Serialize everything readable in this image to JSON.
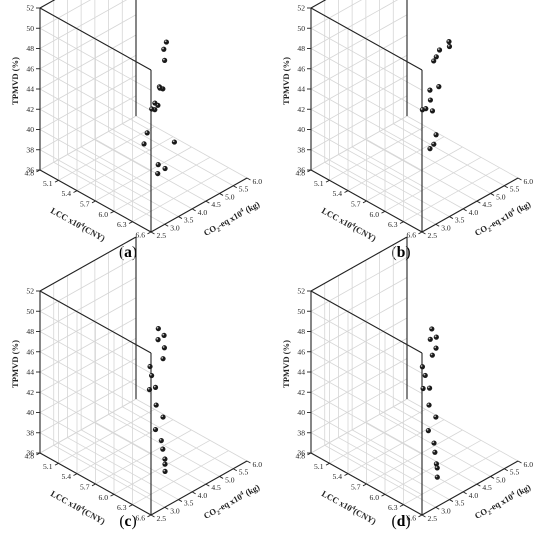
{
  "colors": {
    "point": "#1a1a1a",
    "grid": "#d6d6d6",
    "axis": "#222222"
  },
  "axis_labels": {
    "z": "TPMVD (%)",
    "x": "LCC x10",
    "x_sup": "4",
    "x_unit": "(CNY)",
    "y_pre": "CO",
    "y_sub": "2",
    "y_mid": "-eq x10",
    "y_sup": "4",
    "y_unit": " (kg)"
  },
  "chart_data": [
    {
      "type": "scatter",
      "label": "a",
      "xlabel": "LCC x10^4 (CNY)",
      "ylabel": "CO2-eq x10^4 (kg)",
      "zlabel": "TPMVD (%)",
      "xlim": [
        4.8,
        6.6
      ],
      "ylim": [
        2.5,
        6.0
      ],
      "zlim": [
        36,
        52
      ],
      "x_ticks": [
        "4.8",
        "5.1",
        "5.4",
        "5.7",
        "6.0",
        "6.3",
        "6.6"
      ],
      "y_ticks": [
        "2.5",
        "3.0",
        "3.5",
        "4.0",
        "4.5",
        "5.0",
        "5.5",
        "6.0"
      ],
      "z_ticks": [
        "36",
        "38",
        "40",
        "42",
        "44",
        "46",
        "48",
        "50",
        "52"
      ],
      "grid": true,
      "points": [
        {
          "x": 5.56,
          "y": 5.4,
          "z": 46.8
        },
        {
          "x": 5.54,
          "y": 5.35,
          "z": 46.1
        },
        {
          "x": 5.62,
          "y": 5.2,
          "z": 45.5
        },
        {
          "x": 5.68,
          "y": 5.0,
          "z": 43.2
        },
        {
          "x": 5.58,
          "y": 5.1,
          "z": 42.9
        },
        {
          "x": 5.5,
          "y": 5.3,
          "z": 42.2
        },
        {
          "x": 5.6,
          "y": 5.0,
          "z": 41.3
        },
        {
          "x": 5.44,
          "y": 5.25,
          "z": 40.6
        },
        {
          "x": 5.55,
          "y": 5.0,
          "z": 40.7
        },
        {
          "x": 5.5,
          "y": 5.0,
          "z": 40.6
        },
        {
          "x": 5.56,
          "y": 4.7,
          "z": 38.9
        },
        {
          "x": 5.62,
          "y": 4.45,
          "z": 38.4
        },
        {
          "x": 6.09,
          "y": 4.5,
          "z": 40.1
        },
        {
          "x": 6.05,
          "y": 4.0,
          "z": 38.5
        },
        {
          "x": 6.25,
          "y": 3.8,
          "z": 39.1
        },
        {
          "x": 6.22,
          "y": 3.6,
          "z": 38.8
        }
      ]
    },
    {
      "type": "scatter",
      "label": "b",
      "xlabel": "LCC x10^4 (CNY)",
      "ylabel": "CO2-eq x10^4 (kg)",
      "zlabel": "TPMVD (%)",
      "xlim": [
        4.8,
        6.6
      ],
      "ylim": [
        2.5,
        6.0
      ],
      "zlim": [
        36,
        52
      ],
      "x_ticks": [
        "4.8",
        "5.1",
        "5.4",
        "5.7",
        "6.0",
        "6.3",
        "6.6"
      ],
      "y_ticks": [
        "2.5",
        "3.0",
        "3.5",
        "4.0",
        "4.5",
        "5.0",
        "5.5",
        "6.0"
      ],
      "z_ticks": [
        "36",
        "38",
        "40",
        "42",
        "44",
        "46",
        "48",
        "50",
        "52"
      ],
      "grid": true,
      "points": [
        {
          "x": 5.97,
          "y": 4.9,
          "z": 49.0
        },
        {
          "x": 6.0,
          "y": 4.85,
          "z": 48.7
        },
        {
          "x": 5.75,
          "y": 5.05,
          "z": 47.2
        },
        {
          "x": 5.72,
          "y": 5.0,
          "z": 46.5
        },
        {
          "x": 5.7,
          "y": 4.95,
          "z": 46.1
        },
        {
          "x": 5.85,
          "y": 4.8,
          "z": 44.3
        },
        {
          "x": 5.55,
          "y": 5.15,
          "z": 42.4
        },
        {
          "x": 5.58,
          "y": 5.1,
          "z": 41.6
        },
        {
          "x": 5.68,
          "y": 4.95,
          "z": 41.1
        },
        {
          "x": 5.55,
          "y": 5.0,
          "z": 40.8
        },
        {
          "x": 5.45,
          "y": 5.1,
          "z": 40.2
        },
        {
          "x": 5.85,
          "y": 4.7,
          "z": 39.7
        },
        {
          "x": 5.88,
          "y": 4.55,
          "z": 39.1
        },
        {
          "x": 5.84,
          "y": 4.5,
          "z": 38.6
        }
      ]
    },
    {
      "type": "scatter",
      "label": "c",
      "xlabel": "LCC x10^4 (CNY)",
      "ylabel": "CO2-eq x10^4 (kg)",
      "zlabel": "TPMVD (%)",
      "xlim": [
        4.8,
        6.6
      ],
      "ylim": [
        2.5,
        6.0
      ],
      "zlim": [
        36,
        52
      ],
      "x_ticks": [
        "4.8",
        "5.1",
        "5.4",
        "5.7",
        "6.0",
        "6.3",
        "6.6"
      ],
      "y_ticks": [
        "2.5",
        "3.0",
        "3.5",
        "4.0",
        "4.5",
        "5.0",
        "5.5",
        "6.0"
      ],
      "z_ticks": [
        "36",
        "38",
        "40",
        "42",
        "44",
        "46",
        "48",
        "50",
        "52"
      ],
      "grid": true,
      "points": [
        {
          "x": 5.34,
          "y": 5.6,
          "z": 45.4
        },
        {
          "x": 5.5,
          "y": 5.45,
          "z": 45.5
        },
        {
          "x": 5.38,
          "y": 5.5,
          "z": 44.6
        },
        {
          "x": 5.55,
          "y": 5.35,
          "z": 44.6
        },
        {
          "x": 5.55,
          "y": 5.3,
          "z": 43.6
        },
        {
          "x": 5.25,
          "y": 5.5,
          "z": 41.5
        },
        {
          "x": 5.32,
          "y": 5.4,
          "z": 41.0
        },
        {
          "x": 5.45,
          "y": 5.25,
          "z": 40.5
        },
        {
          "x": 5.33,
          "y": 5.3,
          "z": 39.8
        },
        {
          "x": 5.55,
          "y": 5.05,
          "z": 39.4
        },
        {
          "x": 5.75,
          "y": 4.85,
          "z": 39.2
        },
        {
          "x": 5.65,
          "y": 4.8,
          "z": 37.7
        },
        {
          "x": 5.9,
          "y": 4.45,
          "z": 38.0
        },
        {
          "x": 6.08,
          "y": 4.1,
          "z": 38.3
        },
        {
          "x": 6.27,
          "y": 3.75,
          "z": 38.5
        },
        {
          "x": 6.36,
          "y": 3.55,
          "z": 38.6
        },
        {
          "x": 6.45,
          "y": 3.35,
          "z": 38.5
        }
      ]
    },
    {
      "type": "scatter",
      "label": "d",
      "xlabel": "LCC x10^4 (CNY)",
      "ylabel": "CO2-eq x10^4 (kg)",
      "zlabel": "TPMVD (%)",
      "xlim": [
        4.8,
        6.6
      ],
      "ylim": [
        2.5,
        6.0
      ],
      "zlim": [
        36,
        52
      ],
      "x_ticks": [
        "4.8",
        "5.1",
        "5.4",
        "5.7",
        "6.0",
        "6.3",
        "6.6"
      ],
      "y_ticks": [
        "2.5",
        "3.0",
        "3.5",
        "4.0",
        "4.5",
        "5.0",
        "5.5",
        "6.0"
      ],
      "z_ticks": [
        "36",
        "38",
        "40",
        "42",
        "44",
        "46",
        "48",
        "50",
        "52"
      ],
      "grid": true,
      "points": [
        {
          "x": 5.38,
          "y": 5.6,
          "z": 45.5
        },
        {
          "x": 5.52,
          "y": 5.45,
          "z": 45.4
        },
        {
          "x": 5.4,
          "y": 5.5,
          "z": 44.7
        },
        {
          "x": 5.56,
          "y": 5.35,
          "z": 44.6
        },
        {
          "x": 5.5,
          "y": 5.35,
          "z": 43.7
        },
        {
          "x": 5.25,
          "y": 5.55,
          "z": 41.4
        },
        {
          "x": 5.34,
          "y": 5.45,
          "z": 41.0
        },
        {
          "x": 5.5,
          "y": 5.25,
          "z": 40.6
        },
        {
          "x": 5.35,
          "y": 5.35,
          "z": 39.9
        },
        {
          "x": 5.58,
          "y": 5.05,
          "z": 39.5
        },
        {
          "x": 5.78,
          "y": 4.85,
          "z": 39.3
        },
        {
          "x": 5.68,
          "y": 4.8,
          "z": 37.7
        },
        {
          "x": 5.95,
          "y": 4.4,
          "z": 38.0
        },
        {
          "x": 6.12,
          "y": 4.05,
          "z": 38.2
        },
        {
          "x": 6.3,
          "y": 3.7,
          "z": 38.2
        },
        {
          "x": 6.38,
          "y": 3.55,
          "z": 38.3
        },
        {
          "x": 6.47,
          "y": 3.35,
          "z": 38.0
        }
      ]
    }
  ]
}
